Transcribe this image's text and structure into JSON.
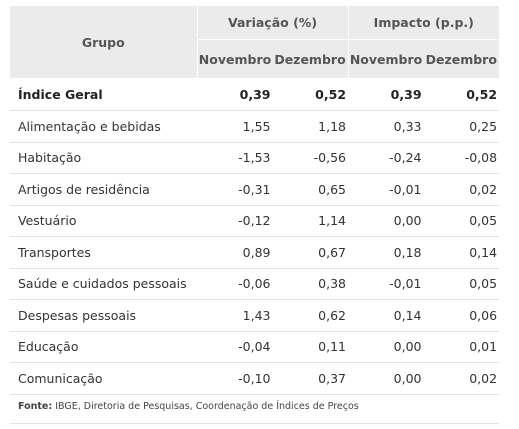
{
  "header": {
    "grupo": "Grupo",
    "variacao": "Variação (%)",
    "impacto": "Impacto (p.p.)",
    "novembro": "Novembro",
    "dezembro": "Dezembro"
  },
  "rows": [
    {
      "label": "Índice Geral",
      "var_nov": "0,39",
      "var_dez": "0,52",
      "imp_nov": "0,39",
      "imp_dez": "0,52"
    },
    {
      "label": "Alimentação e bebidas",
      "var_nov": "1,55",
      "var_dez": "1,18",
      "imp_nov": "0,33",
      "imp_dez": "0,25"
    },
    {
      "label": "Habitação",
      "var_nov": "-1,53",
      "var_dez": "-0,56",
      "imp_nov": "-0,24",
      "imp_dez": "-0,08"
    },
    {
      "label": "Artigos de residência",
      "var_nov": "-0,31",
      "var_dez": "0,65",
      "imp_nov": "-0,01",
      "imp_dez": "0,02"
    },
    {
      "label": "Vestuário",
      "var_nov": "-0,12",
      "var_dez": "1,14",
      "imp_nov": "0,00",
      "imp_dez": "0,05"
    },
    {
      "label": "Transportes",
      "var_nov": "0,89",
      "var_dez": "0,67",
      "imp_nov": "0,18",
      "imp_dez": "0,14"
    },
    {
      "label": "Saúde e cuidados pessoais",
      "var_nov": "-0,06",
      "var_dez": "0,38",
      "imp_nov": "-0,01",
      "imp_dez": "0,05"
    },
    {
      "label": "Despesas pessoais",
      "var_nov": "1,43",
      "var_dez": "0,62",
      "imp_nov": "0,14",
      "imp_dez": "0,06"
    },
    {
      "label": "Educação",
      "var_nov": "-0,04",
      "var_dez": "0,11",
      "imp_nov": "0,00",
      "imp_dez": "0,01"
    },
    {
      "label": "Comunicação",
      "var_nov": "-0,10",
      "var_dez": "0,37",
      "imp_nov": "0,00",
      "imp_dez": "0,02"
    }
  ],
  "footer": {
    "label": "Fonte:",
    "text": " IBGE, Diretoria de Pesquisas, Coordenação de Índices de Preços"
  }
}
